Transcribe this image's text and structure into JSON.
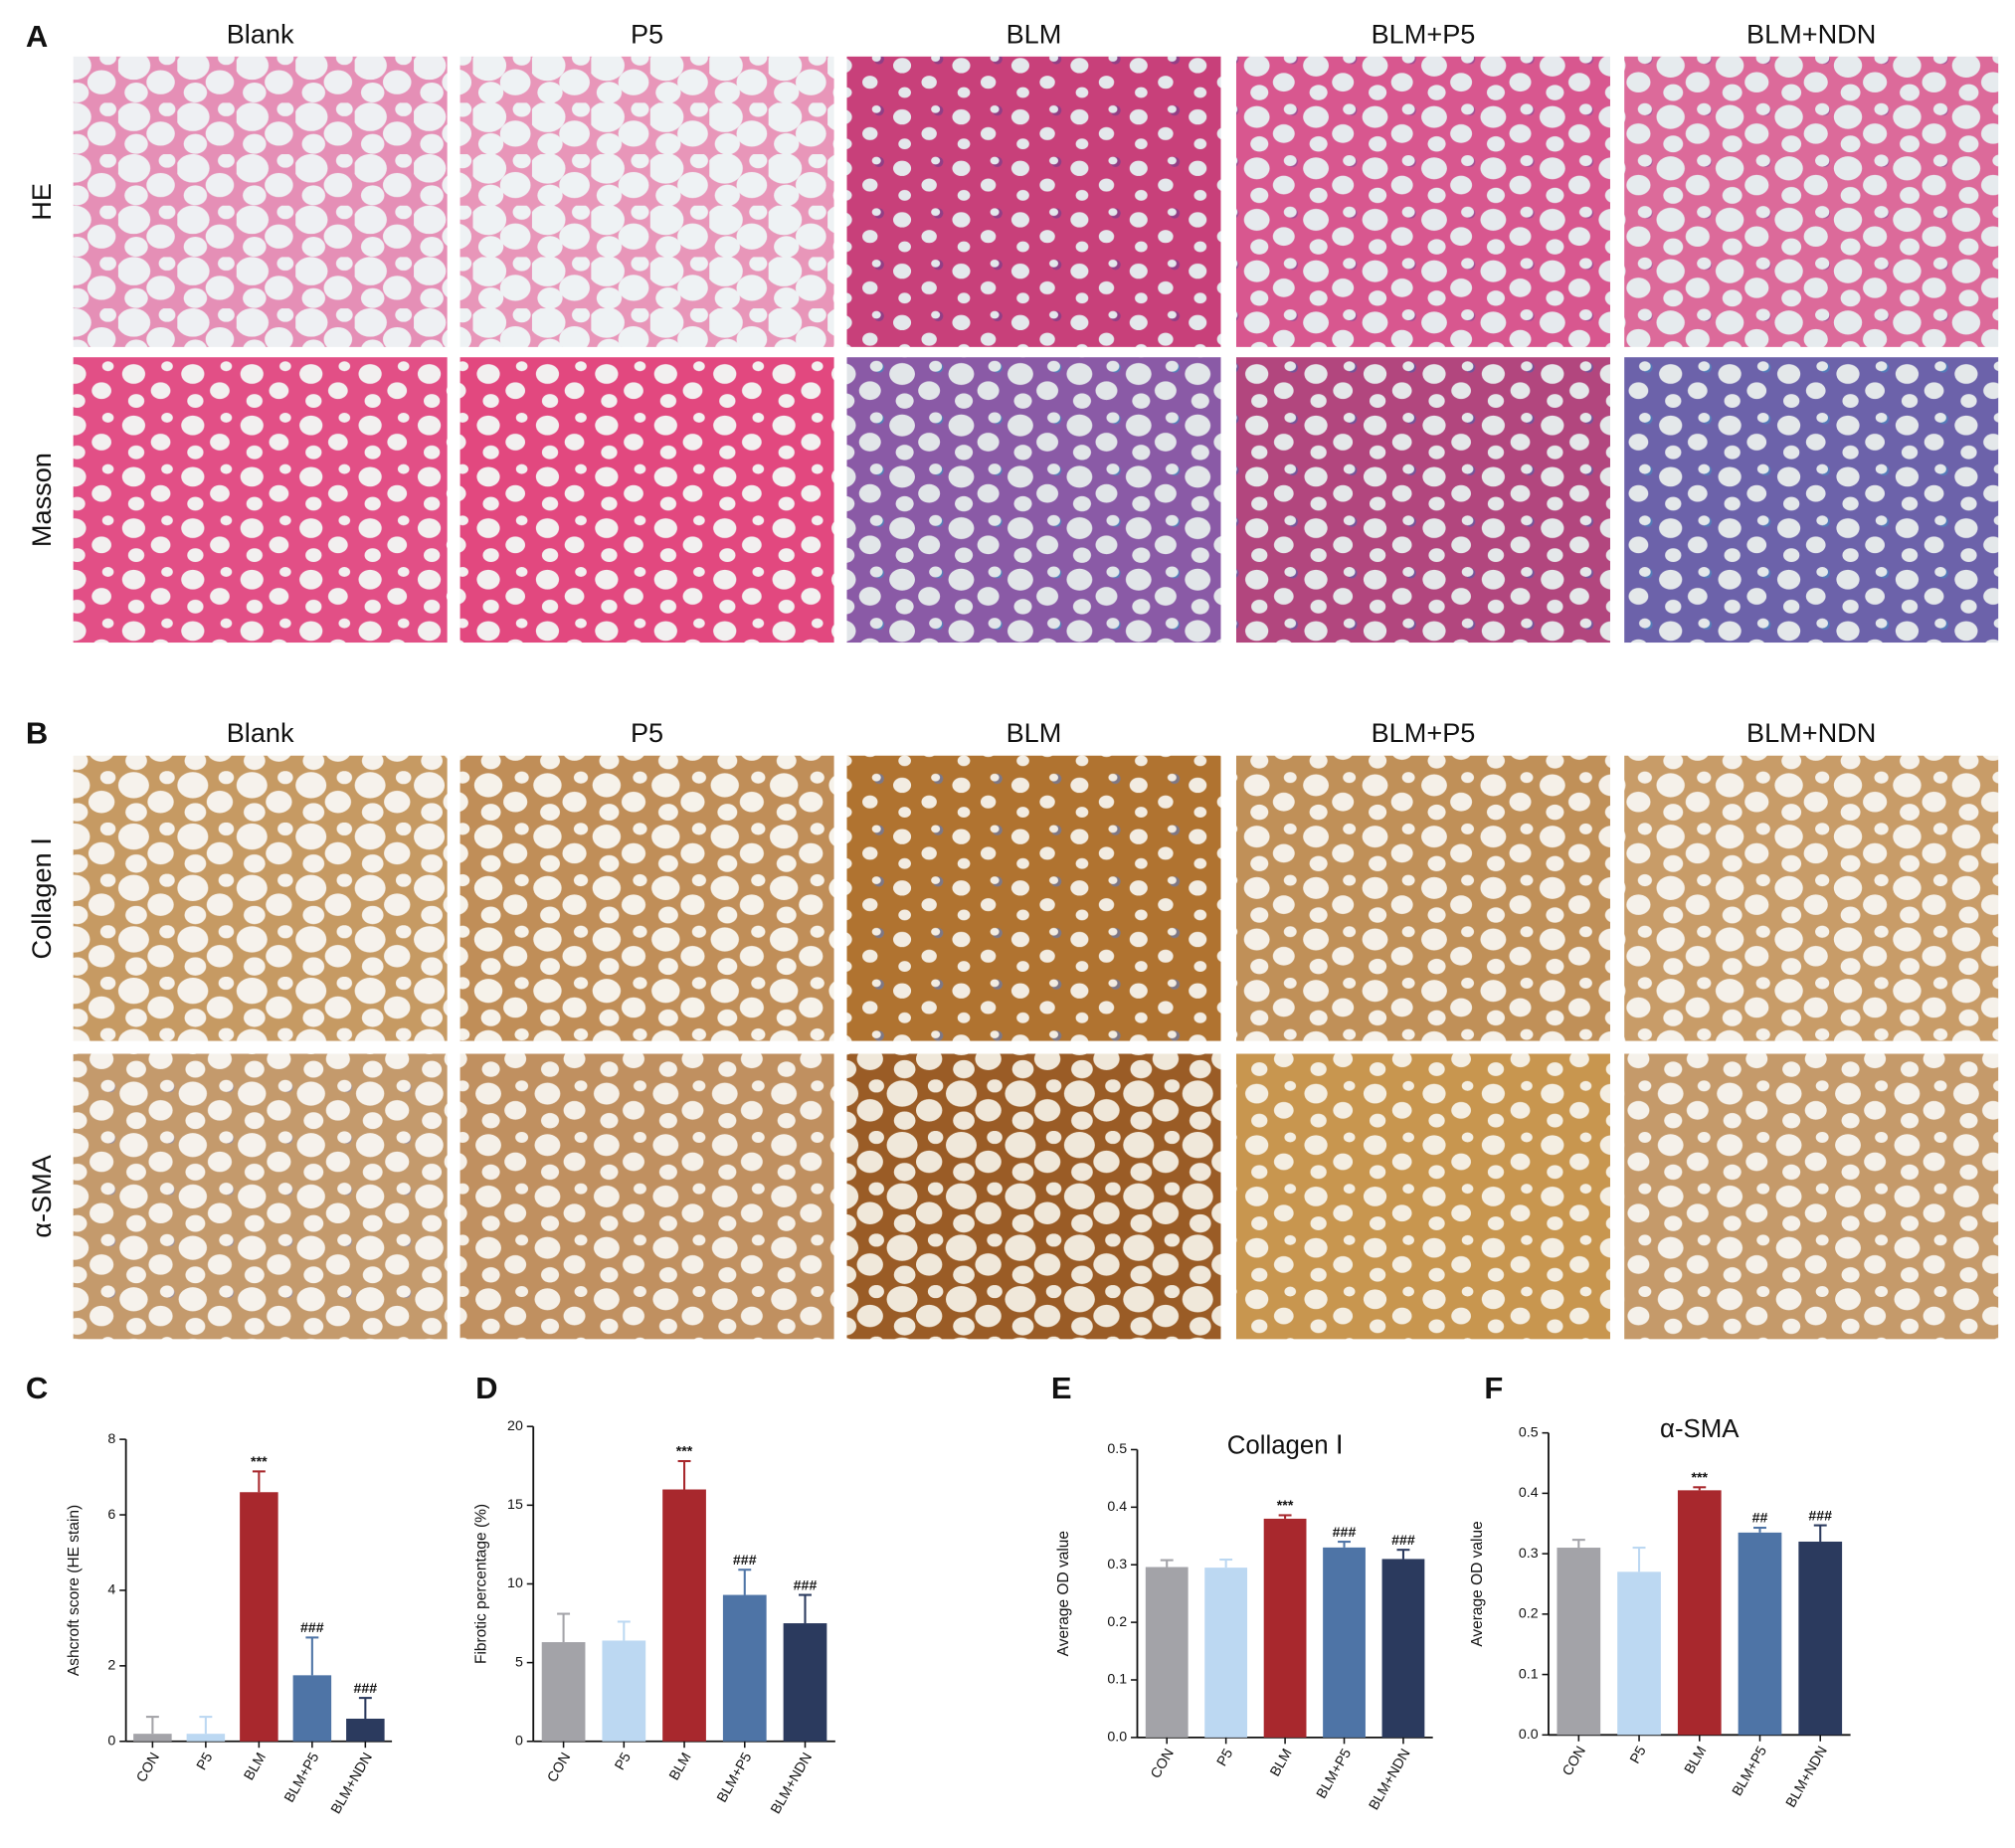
{
  "panels": [
    {
      "letter": "A",
      "columns": [
        "Blank",
        "P5",
        "BLM",
        "BLM+P5",
        "BLM+NDN"
      ],
      "rows": [
        "HE",
        "Masson"
      ]
    },
    {
      "letter": "B",
      "columns": [
        "Blank",
        "P5",
        "BLM",
        "BLM+P5",
        "BLM+NDN"
      ],
      "rows": [
        "Collagen Ⅰ",
        "α-SMA"
      ]
    }
  ],
  "chart_data": [
    {
      "type": "bar",
      "panel_label": "C",
      "y_label": "Ashcroft score (HE stain)",
      "categories": [
        "CON",
        "P5",
        "BLM",
        "BLM+P5",
        "BLM+NDN"
      ],
      "values": [
        0.2,
        0.2,
        6.6,
        1.75,
        0.6
      ],
      "errors": [
        0.45,
        0.45,
        0.55,
        1.0,
        0.55
      ],
      "annotations": [
        null,
        null,
        "***",
        "###",
        "###"
      ],
      "colors": [
        "#a3a3a8",
        "#bcd8f2",
        "#a8282d",
        "#4e74a6",
        "#2b3a5e"
      ],
      "ylim": [
        0,
        8
      ],
      "yticks": [
        0,
        2,
        4,
        6,
        8
      ]
    },
    {
      "type": "bar",
      "panel_label": "D",
      "y_label": "Fibrotic percentage (%)",
      "categories": [
        "CON",
        "P5",
        "BLM",
        "BLM+P5",
        "BLM+NDN"
      ],
      "values": [
        6.3,
        6.4,
        16,
        9.3,
        7.5
      ],
      "errors": [
        1.8,
        1.2,
        1.8,
        1.6,
        1.8
      ],
      "annotations": [
        null,
        null,
        "***",
        "###",
        "###"
      ],
      "colors": [
        "#a3a3a8",
        "#bcd8f2",
        "#a8282d",
        "#4e74a6",
        "#2b3a5e"
      ],
      "ylim": [
        0,
        20
      ],
      "yticks": [
        0,
        5,
        10,
        15,
        20
      ]
    },
    {
      "type": "bar",
      "panel_label": "E",
      "title": "Collagen Ⅰ",
      "y_label": "Average OD value",
      "categories": [
        "CON",
        "P5",
        "BLM",
        "BLM+P5",
        "BLM+NDN"
      ],
      "values": [
        0.296,
        0.295,
        0.38,
        0.33,
        0.31
      ],
      "errors": [
        0.012,
        0.014,
        0.006,
        0.01,
        0.016
      ],
      "annotations": [
        null,
        null,
        "***",
        "###",
        "###"
      ],
      "colors": [
        "#a3a3a8",
        "#bcd8f2",
        "#a8282d",
        "#4e74a6",
        "#2b3a5e"
      ],
      "ylim": [
        0,
        0.5
      ],
      "yticks": [
        {
          "value": 0,
          "label": "0.0"
        },
        0.1,
        0.2,
        0.3,
        0.4,
        0.5
      ]
    },
    {
      "type": "bar",
      "panel_label": "F",
      "title": "α-SMA",
      "y_label": "Average OD value",
      "categories": [
        "CON",
        "P5",
        "BLM",
        "BLM+P5",
        "BLM+NDN"
      ],
      "values": [
        0.31,
        0.27,
        0.405,
        0.335,
        0.32
      ],
      "errors": [
        0.013,
        0.04,
        0.005,
        0.008,
        0.027
      ],
      "annotations": [
        null,
        null,
        "***",
        "##",
        "###"
      ],
      "colors": [
        "#a3a3a8",
        "#bcd8f2",
        "#a8282d",
        "#4e74a6",
        "#2b3a5e"
      ],
      "ylim": [
        0,
        0.5
      ],
      "yticks": [
        {
          "value": 0,
          "label": "0.0"
        },
        0.1,
        0.2,
        0.3,
        0.4,
        0.5
      ]
    }
  ]
}
